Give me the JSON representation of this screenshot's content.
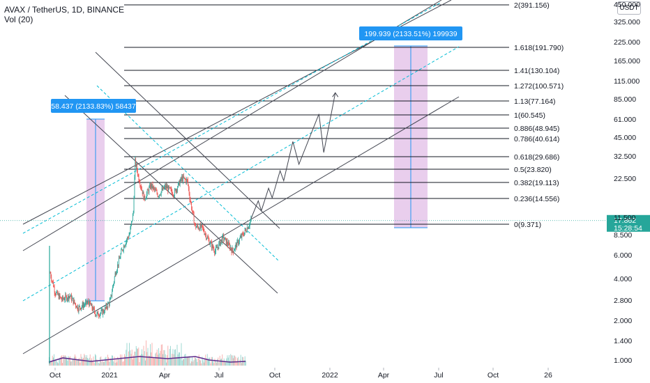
{
  "header": {
    "symbol_line": "AVAX / TetherUS, 1D, BINANCE",
    "indicator_line": "Vol (20)"
  },
  "currency_badge": "USDT",
  "colors": {
    "up": "#26a69a",
    "down": "#ef5350",
    "price_label": "#26a69a",
    "measure_fill": "#e1bee7",
    "measure_line": "#2196f3",
    "measure_label": "#2196f3",
    "channel": "#434651",
    "dashed_channel": "#00bcd4",
    "fib": "#131722",
    "volume_ma": "#5e2b8c",
    "axis_text": "#131722"
  },
  "chart_data": {
    "type": "candlestick",
    "symbol": "AVAX / TetherUS",
    "interval": "1D",
    "exchange": "BINANCE",
    "scale": "log",
    "x_ticks": [
      "Oct",
      "2021",
      "Apr",
      "Jul",
      "Oct",
      "2022",
      "Apr",
      "Jul",
      "Oct",
      "26"
    ],
    "y_ticks": [
      "450.000",
      "325.000",
      "225.000",
      "165.000",
      "115.000",
      "85.000",
      "61.000",
      "45.000",
      "32.500",
      "22.500",
      "11.500",
      "8.500",
      "6.000",
      "4.000",
      "2.800",
      "2.000",
      "1.400",
      "1.000"
    ],
    "last_price": "17.862",
    "countdown": "15:28:54",
    "fib_levels": [
      {
        "label": "2(391.156)",
        "value": 391.156
      },
      {
        "label": "1.618(191.790)",
        "value": 191.79
      },
      {
        "label": "1.41(130.104)",
        "value": 130.104
      },
      {
        "label": "1.272(100.571)",
        "value": 100.571
      },
      {
        "label": "1.13(77.164)",
        "value": 77.164
      },
      {
        "label": "1(60.545)",
        "value": 60.545
      },
      {
        "label": "0.886(48.945)",
        "value": 48.945
      },
      {
        "label": "0.786(40.614)",
        "value": 40.614
      },
      {
        "label": "0.618(29.686)",
        "value": 29.686
      },
      {
        "label": "0.5(23.820)",
        "value": 23.82
      },
      {
        "label": "0.382(19.113)",
        "value": 19.113
      },
      {
        "label": "0.236(14.556)",
        "value": 14.556
      },
      {
        "label": "0(9.371)",
        "value": 9.371
      }
    ],
    "measurements": [
      {
        "label": "58.437 (2133.83%) 58437",
        "from": 2.74,
        "to": 61.2
      },
      {
        "label": "199.939 (2133.51%) 199939",
        "from": 9.371,
        "to": 209.3
      }
    ],
    "projection": [
      {
        "t": "2021-08-20",
        "v": 18.5
      },
      {
        "t": "2021-09-01",
        "v": 26.0
      },
      {
        "t": "2021-09-06",
        "v": 21.5
      },
      {
        "t": "2021-09-18",
        "v": 33.0
      },
      {
        "t": "2021-09-24",
        "v": 27.5
      },
      {
        "t": "2021-10-07",
        "v": 46.0
      },
      {
        "t": "2021-10-13",
        "v": 38.0
      },
      {
        "t": "2021-10-28",
        "v": 80.0
      },
      {
        "t": "2021-11-07",
        "v": 52.0
      },
      {
        "t": "2021-12-10",
        "v": 135.0
      },
      {
        "t": "2021-12-18",
        "v": 65.0
      },
      {
        "t": "2022-01-06",
        "v": 202.0
      }
    ],
    "price_path": [
      {
        "t": "2020-09-23",
        "v": 6.6
      },
      {
        "t": "2020-10-01",
        "v": 4.6
      },
      {
        "t": "2020-10-12",
        "v": 4.0
      },
      {
        "t": "2020-10-25",
        "v": 4.3
      },
      {
        "t": "2020-11-08",
        "v": 3.4
      },
      {
        "t": "2020-11-25",
        "v": 3.8
      },
      {
        "t": "2020-12-08",
        "v": 3.0
      },
      {
        "t": "2020-12-20",
        "v": 3.2
      },
      {
        "t": "2020-12-31",
        "v": 3.9
      },
      {
        "t": "2021-01-08",
        "v": 6.5
      },
      {
        "t": "2021-01-20",
        "v": 10.5
      },
      {
        "t": "2021-02-01",
        "v": 14.0
      },
      {
        "t": "2021-02-07",
        "v": 21.0
      },
      {
        "t": "2021-02-10",
        "v": 55.0
      },
      {
        "t": "2021-02-15",
        "v": 42.0
      },
      {
        "t": "2021-02-25",
        "v": 27.0
      },
      {
        "t": "2021-03-08",
        "v": 35.0
      },
      {
        "t": "2021-03-20",
        "v": 29.0
      },
      {
        "t": "2021-04-01",
        "v": 34.0
      },
      {
        "t": "2021-04-15",
        "v": 30.0
      },
      {
        "t": "2021-04-28",
        "v": 40.0
      },
      {
        "t": "2021-05-07",
        "v": 38.0
      },
      {
        "t": "2021-05-12",
        "v": 26.0
      },
      {
        "t": "2021-05-20",
        "v": 16.0
      },
      {
        "t": "2021-06-01",
        "v": 15.5
      },
      {
        "t": "2021-06-12",
        "v": 12.0
      },
      {
        "t": "2021-06-22",
        "v": 10.0
      },
      {
        "t": "2021-07-05",
        "v": 13.0
      },
      {
        "t": "2021-07-21",
        "v": 10.0
      },
      {
        "t": "2021-08-01",
        "v": 12.5
      },
      {
        "t": "2021-08-12",
        "v": 15.0
      },
      {
        "t": "2021-08-20",
        "v": 17.862
      }
    ]
  }
}
